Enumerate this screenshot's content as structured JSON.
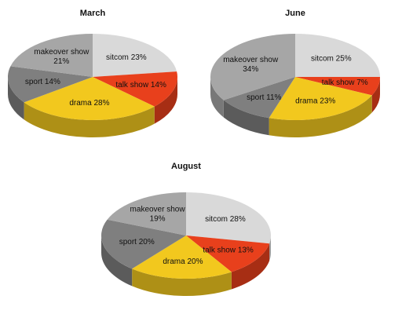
{
  "chart_data": [
    {
      "type": "pie",
      "title": "March",
      "categories": [
        "sitcom",
        "talk show",
        "drama",
        "sport",
        "makeover show"
      ],
      "values": [
        23,
        14,
        28,
        14,
        21
      ],
      "value_labels": [
        "23%",
        "14%",
        "28%",
        "14%",
        "21%"
      ],
      "colors": [
        "#d9d9d9",
        "#e8401c",
        "#f2c81e",
        "#7f7f7f",
        "#a6a6a6"
      ]
    },
    {
      "type": "pie",
      "title": "June",
      "categories": [
        "sitcom",
        "talk show",
        "drama",
        "sport",
        "makeover show"
      ],
      "values": [
        25,
        7,
        23,
        11,
        34
      ],
      "value_labels": [
        "25%",
        "7%",
        "23%",
        "11%",
        "34%"
      ],
      "colors": [
        "#d9d9d9",
        "#e8401c",
        "#f2c81e",
        "#7f7f7f",
        "#a6a6a6"
      ]
    },
    {
      "type": "pie",
      "title": "August",
      "categories": [
        "sitcom",
        "talk show",
        "drama",
        "sport",
        "makeover show"
      ],
      "values": [
        28,
        13,
        20,
        20,
        19
      ],
      "value_labels": [
        "28%",
        "13%",
        "20%",
        "20%",
        "19%"
      ],
      "colors": [
        "#d9d9d9",
        "#e8401c",
        "#f2c81e",
        "#7f7f7f",
        "#a6a6a6"
      ]
    }
  ]
}
